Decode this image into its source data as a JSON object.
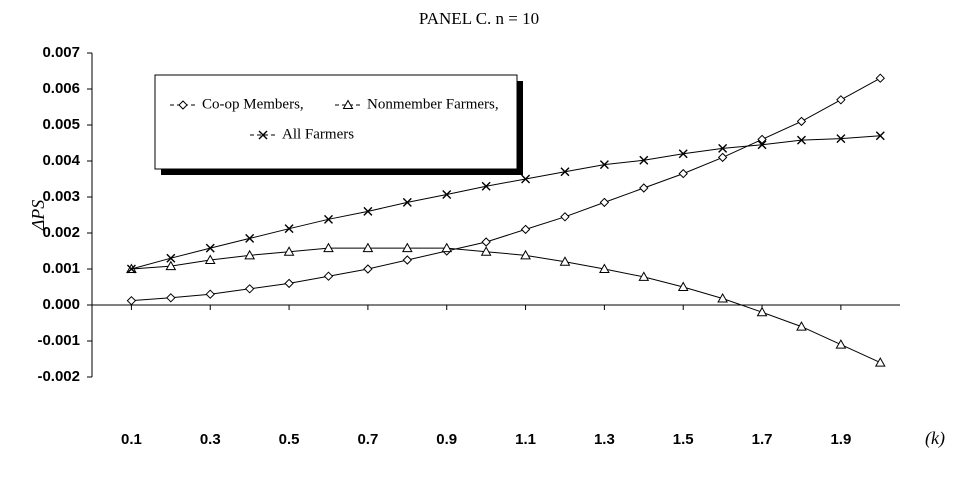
{
  "chart_data": {
    "type": "line",
    "title": "PANEL C.  n = 10",
    "y_label": "ΔPS",
    "x_label": "(k)",
    "x": [
      0.1,
      0.2,
      0.3,
      0.4,
      0.5,
      0.6,
      0.7,
      0.8,
      0.9,
      1.0,
      1.1,
      1.2,
      1.3,
      1.4,
      1.5,
      1.6,
      1.7,
      1.8,
      1.9,
      2.0
    ],
    "xlim": [
      0,
      2.05
    ],
    "xticks": [
      0.1,
      0.3,
      0.5,
      0.7,
      0.9,
      1.1,
      1.3,
      1.5,
      1.7,
      1.9
    ],
    "ylim": [
      -0.002,
      0.007
    ],
    "yticks": [
      -0.002,
      -0.001,
      {
        "value": 0,
        "label": "0.000"
      },
      0.001,
      0.002,
      0.003,
      0.004,
      0.005,
      0.006,
      0.007
    ],
    "series": [
      {
        "name": "Co-op Members,",
        "color": "#000000",
        "marker": "diamond",
        "values": [
          0.00012,
          0.0002,
          0.0003,
          0.00045,
          0.0006,
          0.0008,
          0.001,
          0.00125,
          0.0015,
          0.00175,
          0.0021,
          0.00245,
          0.00285,
          0.00325,
          0.00365,
          0.0041,
          0.0046,
          0.0051,
          0.0057,
          0.0063
        ]
      },
      {
        "name": "Nonmember Farmers,",
        "color": "#000000",
        "marker": "triangle",
        "values": [
          0.001,
          0.00108,
          0.00125,
          0.00138,
          0.00148,
          0.00158,
          0.00158,
          0.00158,
          0.00158,
          0.00148,
          0.00138,
          0.0012,
          0.001,
          0.00078,
          0.0005,
          0.00018,
          -0.0002,
          -0.0006,
          -0.0011,
          -0.0016
        ]
      },
      {
        "name": "All Farmers",
        "color": "#000000",
        "marker": "x",
        "values": [
          0.001,
          0.0013,
          0.00158,
          0.00185,
          0.00212,
          0.00238,
          0.0026,
          0.00285,
          0.00307,
          0.0033,
          0.0035,
          0.0037,
          0.0039,
          0.00402,
          0.0042,
          0.00435,
          0.00445,
          0.00458,
          0.00462,
          0.0047
        ]
      }
    ],
    "grid": false
  }
}
